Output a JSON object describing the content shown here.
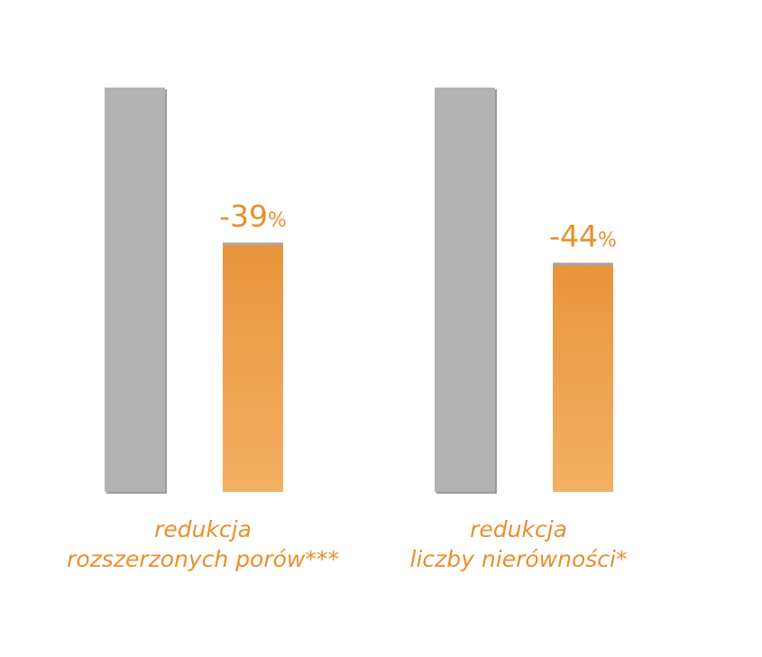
{
  "chart_data": {
    "type": "bar",
    "categories": [
      [
        "redukcja",
        "rozszerzonych porów***"
      ],
      [
        "redukcja",
        "liczby nierówności*"
      ]
    ],
    "series": [
      {
        "values": [
          100,
          100
        ]
      },
      {
        "values": [
          61,
          56
        ]
      }
    ],
    "data_labels": [
      {
        "number": "-39",
        "unit": "%"
      },
      {
        "number": "-44",
        "unit": "%"
      }
    ],
    "ylim": [
      0,
      100
    ],
    "grid": false,
    "legend": "none",
    "colors": {
      "baseline": "#b3b3b3",
      "baseline_edge": "#9a9a9a",
      "treated_top": "#e8953a",
      "treated_bottom": "#f4b063",
      "treated_edge": "#a8a8a8",
      "label": "#ea8f2c"
    }
  }
}
